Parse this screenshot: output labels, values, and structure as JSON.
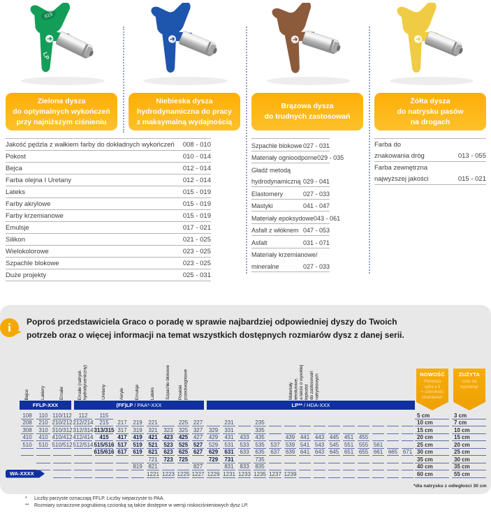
{
  "colors": {
    "band_blue": "#10309f",
    "line_blue": "#5b6fae",
    "label_yellow": "#ffb412",
    "ribbon_orange": "#f3a60a",
    "box_gray": "#e8e8e8"
  },
  "tips": [
    {
      "name": "green",
      "color": "#129e59",
      "markings": [
        "619",
        "LP"
      ],
      "label": "Zielona dysza\ndo optymalnych wykończeń\nprzy najniższym ciśnieniu"
    },
    {
      "name": "blue",
      "color": "#1e55ad",
      "markings": [],
      "label": "Niebieska dysza\nhydrodynamiczna do pracy\nz maksymalną wydajnością"
    },
    {
      "name": "brown",
      "color": "#8c5b3c",
      "markings": [],
      "label": "Brązowa dysza\ndo trudnych zastosowań"
    },
    {
      "name": "yellow",
      "color": "#f0cc45",
      "markings": [],
      "label": "Żółta dysza\ndo natrysku pasów\nna drogach"
    }
  ],
  "lists": {
    "left": [
      {
        "lines": [
          "Jakość pędzla z wałkiem farby do dokładnych wykończeń"
        ],
        "value": "008 - 010"
      },
      {
        "lines": [
          "Pokost"
        ],
        "value": "010 - 014"
      },
      {
        "lines": [
          "Bejca"
        ],
        "value": "012 - 014"
      },
      {
        "lines": [
          "Farba olejna I Uretany"
        ],
        "value": "012 - 014"
      },
      {
        "lines": [
          "Lateks"
        ],
        "value": "015 - 019"
      },
      {
        "lines": [
          "Farby akrylowe"
        ],
        "value": "015 - 019"
      },
      {
        "lines": [
          "Farby krzemianowe"
        ],
        "value": "015 - 019"
      },
      {
        "lines": [
          "Emulsje"
        ],
        "value": "017 - 021"
      },
      {
        "lines": [
          "Silikon"
        ],
        "value": "021 - 025"
      },
      {
        "lines": [
          "Wielokolorowe"
        ],
        "value": "023 - 025"
      },
      {
        "lines": [
          "Szpachle blokowe"
        ],
        "value": "023 - 025"
      },
      {
        "lines": [
          "Duże projekty"
        ],
        "value": "025 - 031"
      }
    ],
    "brown": [
      {
        "lines": [
          "Szpachle blokowe"
        ],
        "value": "027 - 031"
      },
      {
        "lines": [
          "Materiały ognioodporne"
        ],
        "value": "029 - 035"
      },
      {
        "lines": [
          "Gładź metodą",
          "hydrodynamiczną"
        ],
        "value": "029 - 041"
      },
      {
        "lines": [
          "Elastomery"
        ],
        "value": "027 - 033"
      },
      {
        "lines": [
          "Mastyki"
        ],
        "value": "041 - 047"
      },
      {
        "lines": [
          "Materiały epoksydowe"
        ],
        "value": "043 - 061"
      },
      {
        "lines": [
          "Asfalt z włóknem"
        ],
        "value": "047 - 053"
      },
      {
        "lines": [
          "Asfalt"
        ],
        "value": "031 - 071"
      },
      {
        "lines": [
          "Materiały krzemianowe/",
          "mineralne"
        ],
        "value": "027 - 033"
      }
    ],
    "yellow": [
      {
        "lines": [
          "Farba do",
          "znakowania dróg"
        ],
        "value": "013 - 055"
      },
      {
        "lines": [
          "Farba zewnętrzna",
          "najwyższej jakości"
        ],
        "value": "015 - 021"
      }
    ]
  },
  "info": {
    "icon": "i",
    "text": "Poproś przedstawiciela Graco o poradę w sprawie najbardziej odpowiedniej dyszy do Twoich\npotrzeb oraz o więcej informacji na temat wszystkich dostępnych rozmiarów dysz z danej serii."
  },
  "table": {
    "column_headers": [
      [
        "Bejce"
      ],
      [
        "Lakiery"
      ],
      [
        "Emalie"
      ],
      [
        "Emalie (natrysk",
        "hydrodynamiczny)"
      ],
      [
        "Uretany"
      ],
      [
        "Akryle"
      ],
      [
        "Emulsje"
      ],
      [
        "Lateks"
      ],
      [
        "Szpachle blokowe"
      ],
      [
        "Powłoki",
        "przeciwogniowe"
      ]
    ],
    "texture_header": [
      "Materiały",
      "teksturowe,",
      "a także o wysokiej",
      "lepkości",
      "do zastosowań",
      "natryskowych"
    ],
    "bands": [
      {
        "bold": "FFLP-XXX",
        "rest": "",
        "col_start": 1,
        "col_end": 3
      },
      {
        "bold": "(FF)LP",
        "rest": " / PAA*-XXX",
        "col_start": 4,
        "col_end": 11
      },
      {
        "bold": "LP**",
        "rest": " / HDA-XXX",
        "col_start": 12,
        "col_end": 25
      }
    ],
    "wa_label": "WA-XXXX",
    "rows": [
      [
        "108",
        "110",
        "110/112",
        "112",
        "115",
        "",
        "",
        "",
        "",
        "",
        "",
        "",
        "",
        "",
        "",
        "",
        "",
        "",
        "",
        "",
        "",
        "",
        "",
        "",
        ""
      ],
      [
        "208",
        "210",
        "210/212",
        "212/214",
        "215",
        "217",
        "219",
        "221",
        "",
        "225",
        "227",
        "",
        "231",
        "",
        "235",
        "",
        "",
        "",
        "",
        "",
        "",
        "",
        "",
        "",
        ""
      ],
      [
        "308",
        "310",
        "310/312",
        "312/314",
        "*313/315",
        "317",
        "319",
        "321",
        "323",
        "325",
        "327",
        "329",
        "331",
        "",
        "335",
        "",
        "",
        "",
        "",
        "",
        "",
        "",
        "",
        "",
        ""
      ],
      [
        "410",
        "410",
        "410/412",
        "412/414",
        "*415",
        "*417",
        "*419",
        "*421",
        "*423",
        "*425",
        "427",
        "429",
        "431",
        "433",
        "435",
        "",
        "439",
        "441",
        "443",
        "445",
        "451",
        "455",
        "",
        "",
        ""
      ],
      [
        "510",
        "510",
        "510/512",
        "512/514",
        "*515/516",
        "*517",
        "*519",
        "*521",
        "*523",
        "*525",
        "*527",
        "529",
        "531",
        "533",
        "535",
        "537",
        "539",
        "541",
        "543",
        "545",
        "551",
        "555",
        "561",
        "",
        ""
      ],
      [
        "",
        "",
        "",
        "",
        "*615/616",
        "*617",
        "*619",
        "*621",
        "*623",
        "*625",
        "*627",
        "*629",
        "*631",
        "633",
        "635",
        "637",
        "639",
        "641",
        "643",
        "645",
        "651",
        "655",
        "661",
        "665",
        "671"
      ],
      [
        "",
        "",
        "",
        "",
        "",
        "",
        "",
        "721",
        "*723",
        "*725",
        "",
        "*729",
        "*731",
        "",
        "735",
        "",
        "",
        "",
        "",
        "",
        "",
        "",
        "",
        "",
        ""
      ],
      [
        "",
        "",
        "",
        "",
        "",
        "",
        "819",
        "821",
        "",
        "",
        "827",
        "",
        "831",
        "833",
        "835",
        "",
        "",
        "",
        "",
        "",
        "",
        "",
        "",
        "",
        ""
      ],
      [
        "",
        "",
        "",
        "",
        "",
        "",
        "",
        "1221",
        "1223",
        "1225",
        "1227",
        "1229",
        "1231",
        "1233",
        "1235",
        "1237",
        "1239",
        "",
        "",
        "",
        "",
        "",
        "",
        "",
        ""
      ]
    ],
    "line_spans": [
      [
        1,
        5
      ],
      [
        1,
        25
      ],
      [
        1,
        25
      ],
      [
        1,
        25
      ],
      [
        1,
        25
      ],
      [
        1,
        25
      ],
      [
        2,
        25
      ],
      [
        2,
        25
      ],
      [
        3,
        25
      ]
    ],
    "note": "*dla natrysku z odległości 30 cm"
  },
  "ribbons": [
    {
      "title": "NOWOŚĆ",
      "subtitle": "Pierwsza\ncyfra x 5\n= szerokość\nstrumienia*"
    },
    {
      "title": "ZUŻYTA",
      "subtitle": "czas na\nwymianę!"
    }
  ],
  "cm_table": {
    "nowosc": [
      "5 cm",
      "10 cm",
      "15 cm",
      "20 cm",
      "25 cm",
      "30 cm",
      "35 cm",
      "40 cm",
      "60 cm"
    ],
    "zuzyta": [
      "3 cm",
      "7 cm",
      "10 cm",
      "15 cm",
      "20 cm",
      "25 cm",
      "30 cm",
      "35 cm",
      "55 cm"
    ]
  },
  "footnotes": [
    {
      "marker": "*",
      "text": "Liczby parzyste oznaczają FFLP. Liczby nieparzyste to PAA."
    },
    {
      "marker": "**",
      "text": "Rozmiary oznaczone pogrubioną czcionką są także dostępne w wersji niskociśnieniowych dysz LP."
    }
  ]
}
